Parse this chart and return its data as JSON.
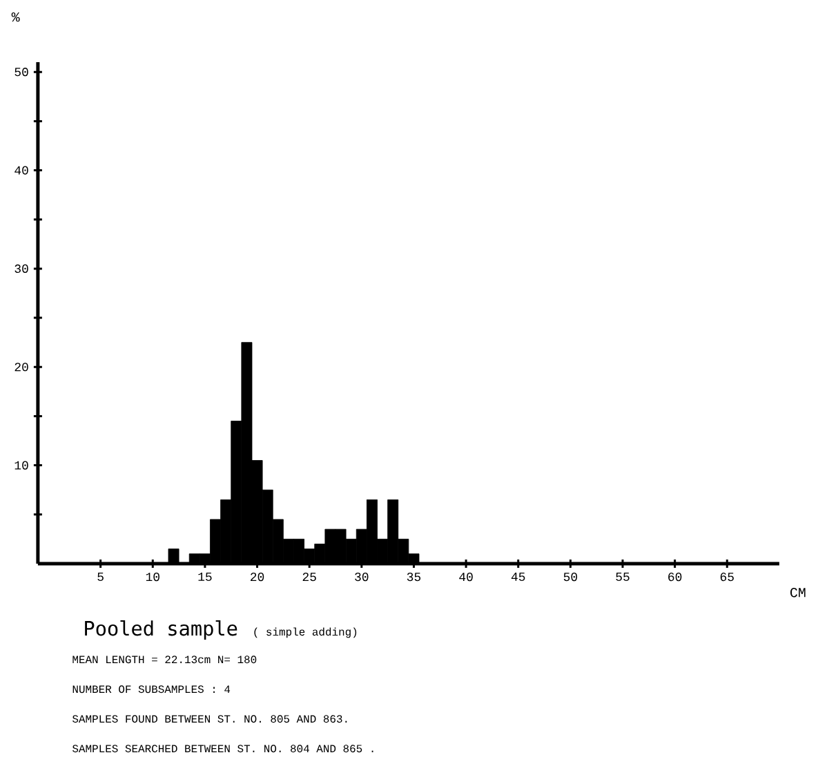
{
  "chart_data": {
    "type": "histogram",
    "title": "Pooled sample",
    "subtitle": "( simple adding)",
    "xlabel": "CM",
    "ylabel": "%",
    "annotations": [
      "MEAN LENGTH = 22.13cm  N=  180",
      "NUMBER OF SUBSAMPLES :  4",
      "SAMPLES FOUND BETWEEN ST. NO. 805 AND  863.",
      "SAMPLES SEARCHED BETWEEN ST. NO. 804 AND  865 ."
    ],
    "bins": [
      -0.5,
      0.5,
      1.5,
      2.5,
      3.5,
      4.5,
      5.5,
      6.5,
      7.5,
      8.5,
      9.5,
      10.5,
      11.5,
      12.5,
      13.5,
      14.5,
      15.5,
      16.5,
      17.5,
      18.5,
      19.5,
      20.5,
      21.5,
      22.5,
      23.5,
      24.5,
      25.5,
      26.5,
      27.5,
      28.5,
      29.5,
      30.5,
      31.5,
      32.5,
      33.5,
      34.5,
      35.5,
      36.5,
      37.5,
      38.5,
      39.5,
      40.5,
      41.5,
      42.5,
      43.5,
      44.5,
      45.5,
      46.5,
      47.5,
      48.5,
      49.5,
      50.5,
      51.5,
      52.5,
      53.5,
      54.5,
      55.5,
      56.5,
      57.5,
      58.5,
      59.5,
      60.5,
      61.5,
      62.5,
      63.5,
      64.5,
      65.5,
      66.5,
      67.5,
      68.5,
      69.5
    ],
    "values": [
      0,
      0,
      0,
      0,
      0,
      0,
      0,
      0,
      0,
      0,
      0,
      0,
      1.5,
      0,
      1,
      1,
      4.5,
      6.5,
      14.5,
      22.5,
      10.5,
      7.5,
      4.5,
      2.5,
      2.5,
      1.5,
      2,
      3.5,
      3.5,
      2.5,
      3.5,
      6.5,
      2.5,
      6.5,
      2.5,
      1,
      0,
      0,
      0,
      0,
      0,
      0,
      0,
      0,
      0,
      0,
      0,
      0,
      0,
      0,
      0,
      0,
      0,
      0,
      0,
      0,
      0,
      0,
      0,
      0,
      0,
      0,
      0,
      0,
      0,
      0,
      0,
      0,
      0,
      0
    ],
    "color": "#000000",
    "xlim": [
      -1,
      70
    ],
    "ylim": [
      0,
      51
    ],
    "xticks": [
      5,
      10,
      15,
      20,
      25,
      30,
      35,
      40,
      45,
      50,
      55,
      60,
      65
    ],
    "yticks": [
      {
        "value": 5,
        "label": null
      },
      10,
      {
        "value": 15,
        "label": null
      },
      20,
      {
        "value": 25,
        "label": null
      },
      30,
      {
        "value": 35,
        "label": null
      },
      40,
      {
        "value": 45,
        "label": null
      },
      50
    ]
  }
}
